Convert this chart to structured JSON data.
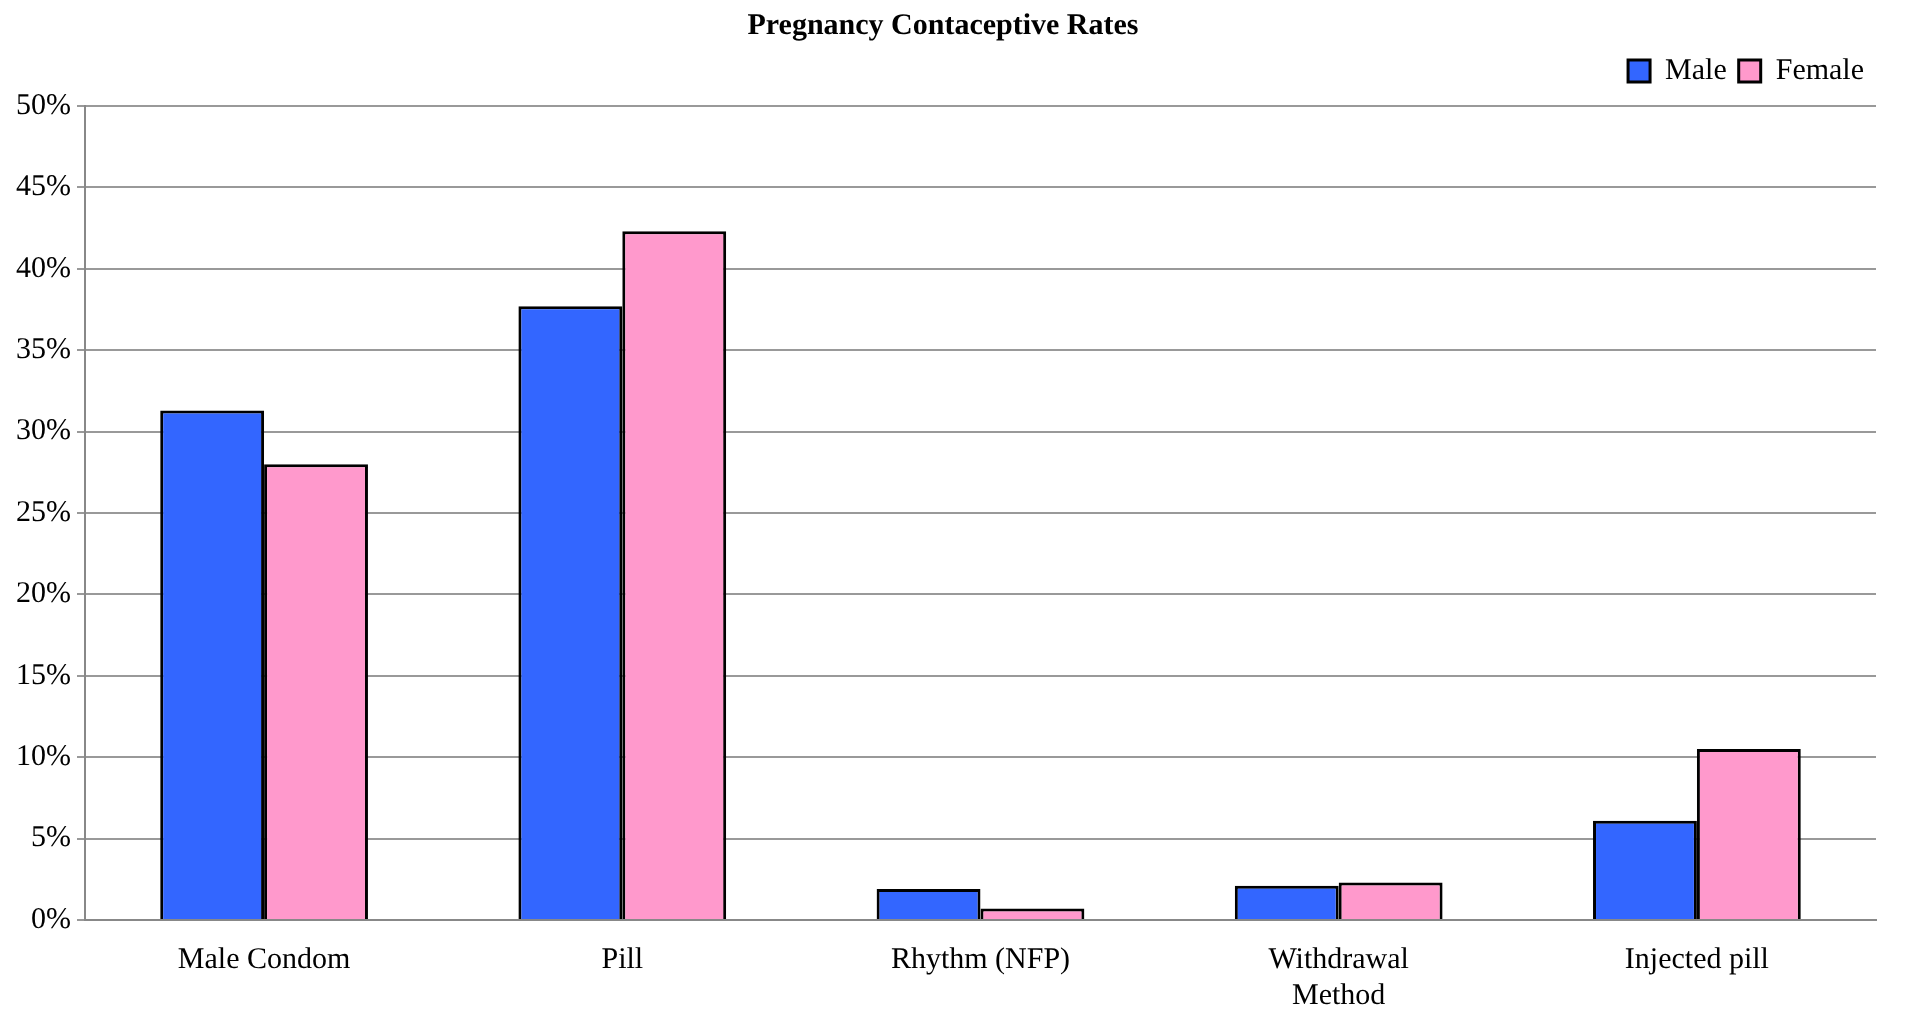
{
  "chart_data": {
    "type": "bar",
    "title": "Pregnancy Contaceptive Rates",
    "categories": [
      "Male Condom",
      "Pill",
      "Rhythm (NFP)",
      "Withdrawal Method",
      "Injected pill"
    ],
    "series": [
      {
        "name": "Male",
        "color": "#3366ff",
        "values": [
          31.3,
          37.7,
          1.9,
          2.1,
          6.1
        ]
      },
      {
        "name": "Female",
        "color": "#ff99cc",
        "values": [
          28.0,
          42.3,
          0.7,
          2.3,
          10.5
        ]
      }
    ],
    "ylim": [
      0,
      50
    ],
    "yticks": [
      {
        "value": 0,
        "label": "0%"
      },
      {
        "value": 5,
        "label": "5%"
      },
      {
        "value": 10,
        "label": "10%"
      },
      {
        "value": 15,
        "label": "15%"
      },
      {
        "value": 20,
        "label": "20%"
      },
      {
        "value": 25,
        "label": "25%"
      },
      {
        "value": 30,
        "label": "30%"
      },
      {
        "value": 35,
        "label": "35%"
      },
      {
        "value": 40,
        "label": "40%"
      },
      {
        "value": 45,
        "label": "45%"
      },
      {
        "value": 50,
        "label": "50%"
      }
    ],
    "grid": "y",
    "legend": "top right"
  }
}
